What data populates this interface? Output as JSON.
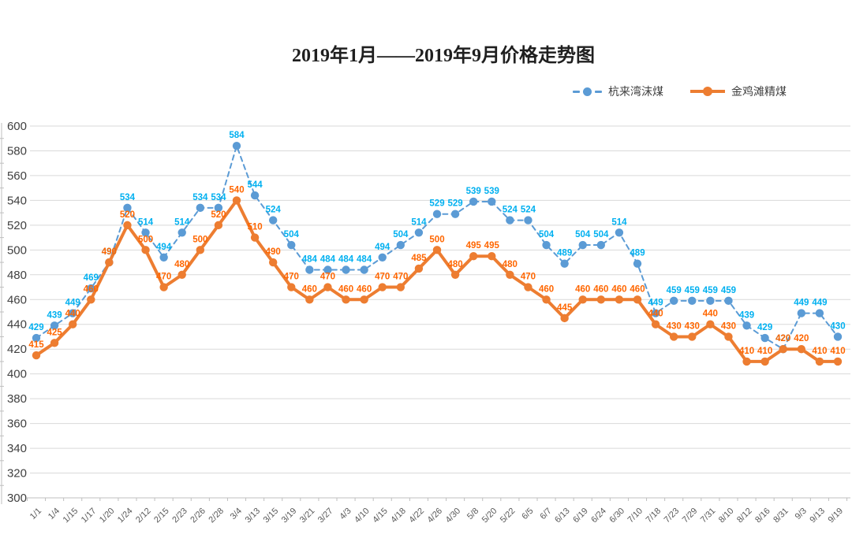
{
  "chart_data": {
    "type": "line",
    "title": "2019年1月——2019年9月价格走势图",
    "categories": [
      "1/1",
      "1/4",
      "1/15",
      "1/17",
      "1/20",
      "1/24",
      "2/12",
      "2/15",
      "2/23",
      "2/26",
      "2/28",
      "3/4",
      "3/13",
      "3/15",
      "3/19",
      "3/21",
      "3/27",
      "4/3",
      "4/10",
      "4/15",
      "4/18",
      "4/22",
      "4/26",
      "4/30",
      "5/8",
      "5/20",
      "5/22",
      "6/5",
      "6/7",
      "6/13",
      "6/19",
      "6/24",
      "6/30",
      "7/10",
      "7/18",
      "7/23",
      "7/29",
      "7/31",
      "8/10",
      "8/12",
      "8/16",
      "8/31",
      "9/3",
      "9/13",
      "9/19"
    ],
    "series": [
      {
        "name": "杭来湾沫煤",
        "style": "dashed",
        "line_color": "#5B9BD5",
        "label_color": "#00B0F0",
        "values": [
          429,
          439,
          449,
          469,
          490,
          534,
          514,
          494,
          514,
          534,
          534,
          584,
          544,
          524,
          504,
          484,
          484,
          484,
          484,
          494,
          504,
          514,
          529,
          529,
          539,
          539,
          524,
          524,
          504,
          489,
          504,
          504,
          514,
          489,
          449,
          459,
          459,
          459,
          459,
          439,
          429,
          420,
          449,
          449,
          430
        ]
      },
      {
        "name": "金鸡滩精煤",
        "style": "solid",
        "line_color": "#ED7D31",
        "label_color": "#FF6600",
        "values": [
          415,
          425,
          440,
          460,
          490,
          520,
          500,
          470,
          480,
          500,
          520,
          540,
          510,
          490,
          470,
          460,
          470,
          460,
          460,
          470,
          470,
          485,
          500,
          480,
          495,
          495,
          480,
          470,
          460,
          445,
          460,
          460,
          460,
          460,
          440,
          430,
          430,
          440,
          430,
          410,
          410,
          420,
          420,
          410,
          410
        ]
      }
    ],
    "ylim": [
      300,
      600
    ],
    "ytick_step": 20,
    "yticks": [
      300,
      320,
      340,
      360,
      380,
      400,
      420,
      440,
      460,
      480,
      500,
      520,
      540,
      560,
      580,
      600
    ],
    "grid": true,
    "grid_color": "#D9D9D9",
    "axis_color": "#BFBFBF",
    "legend_position": "top-right"
  }
}
